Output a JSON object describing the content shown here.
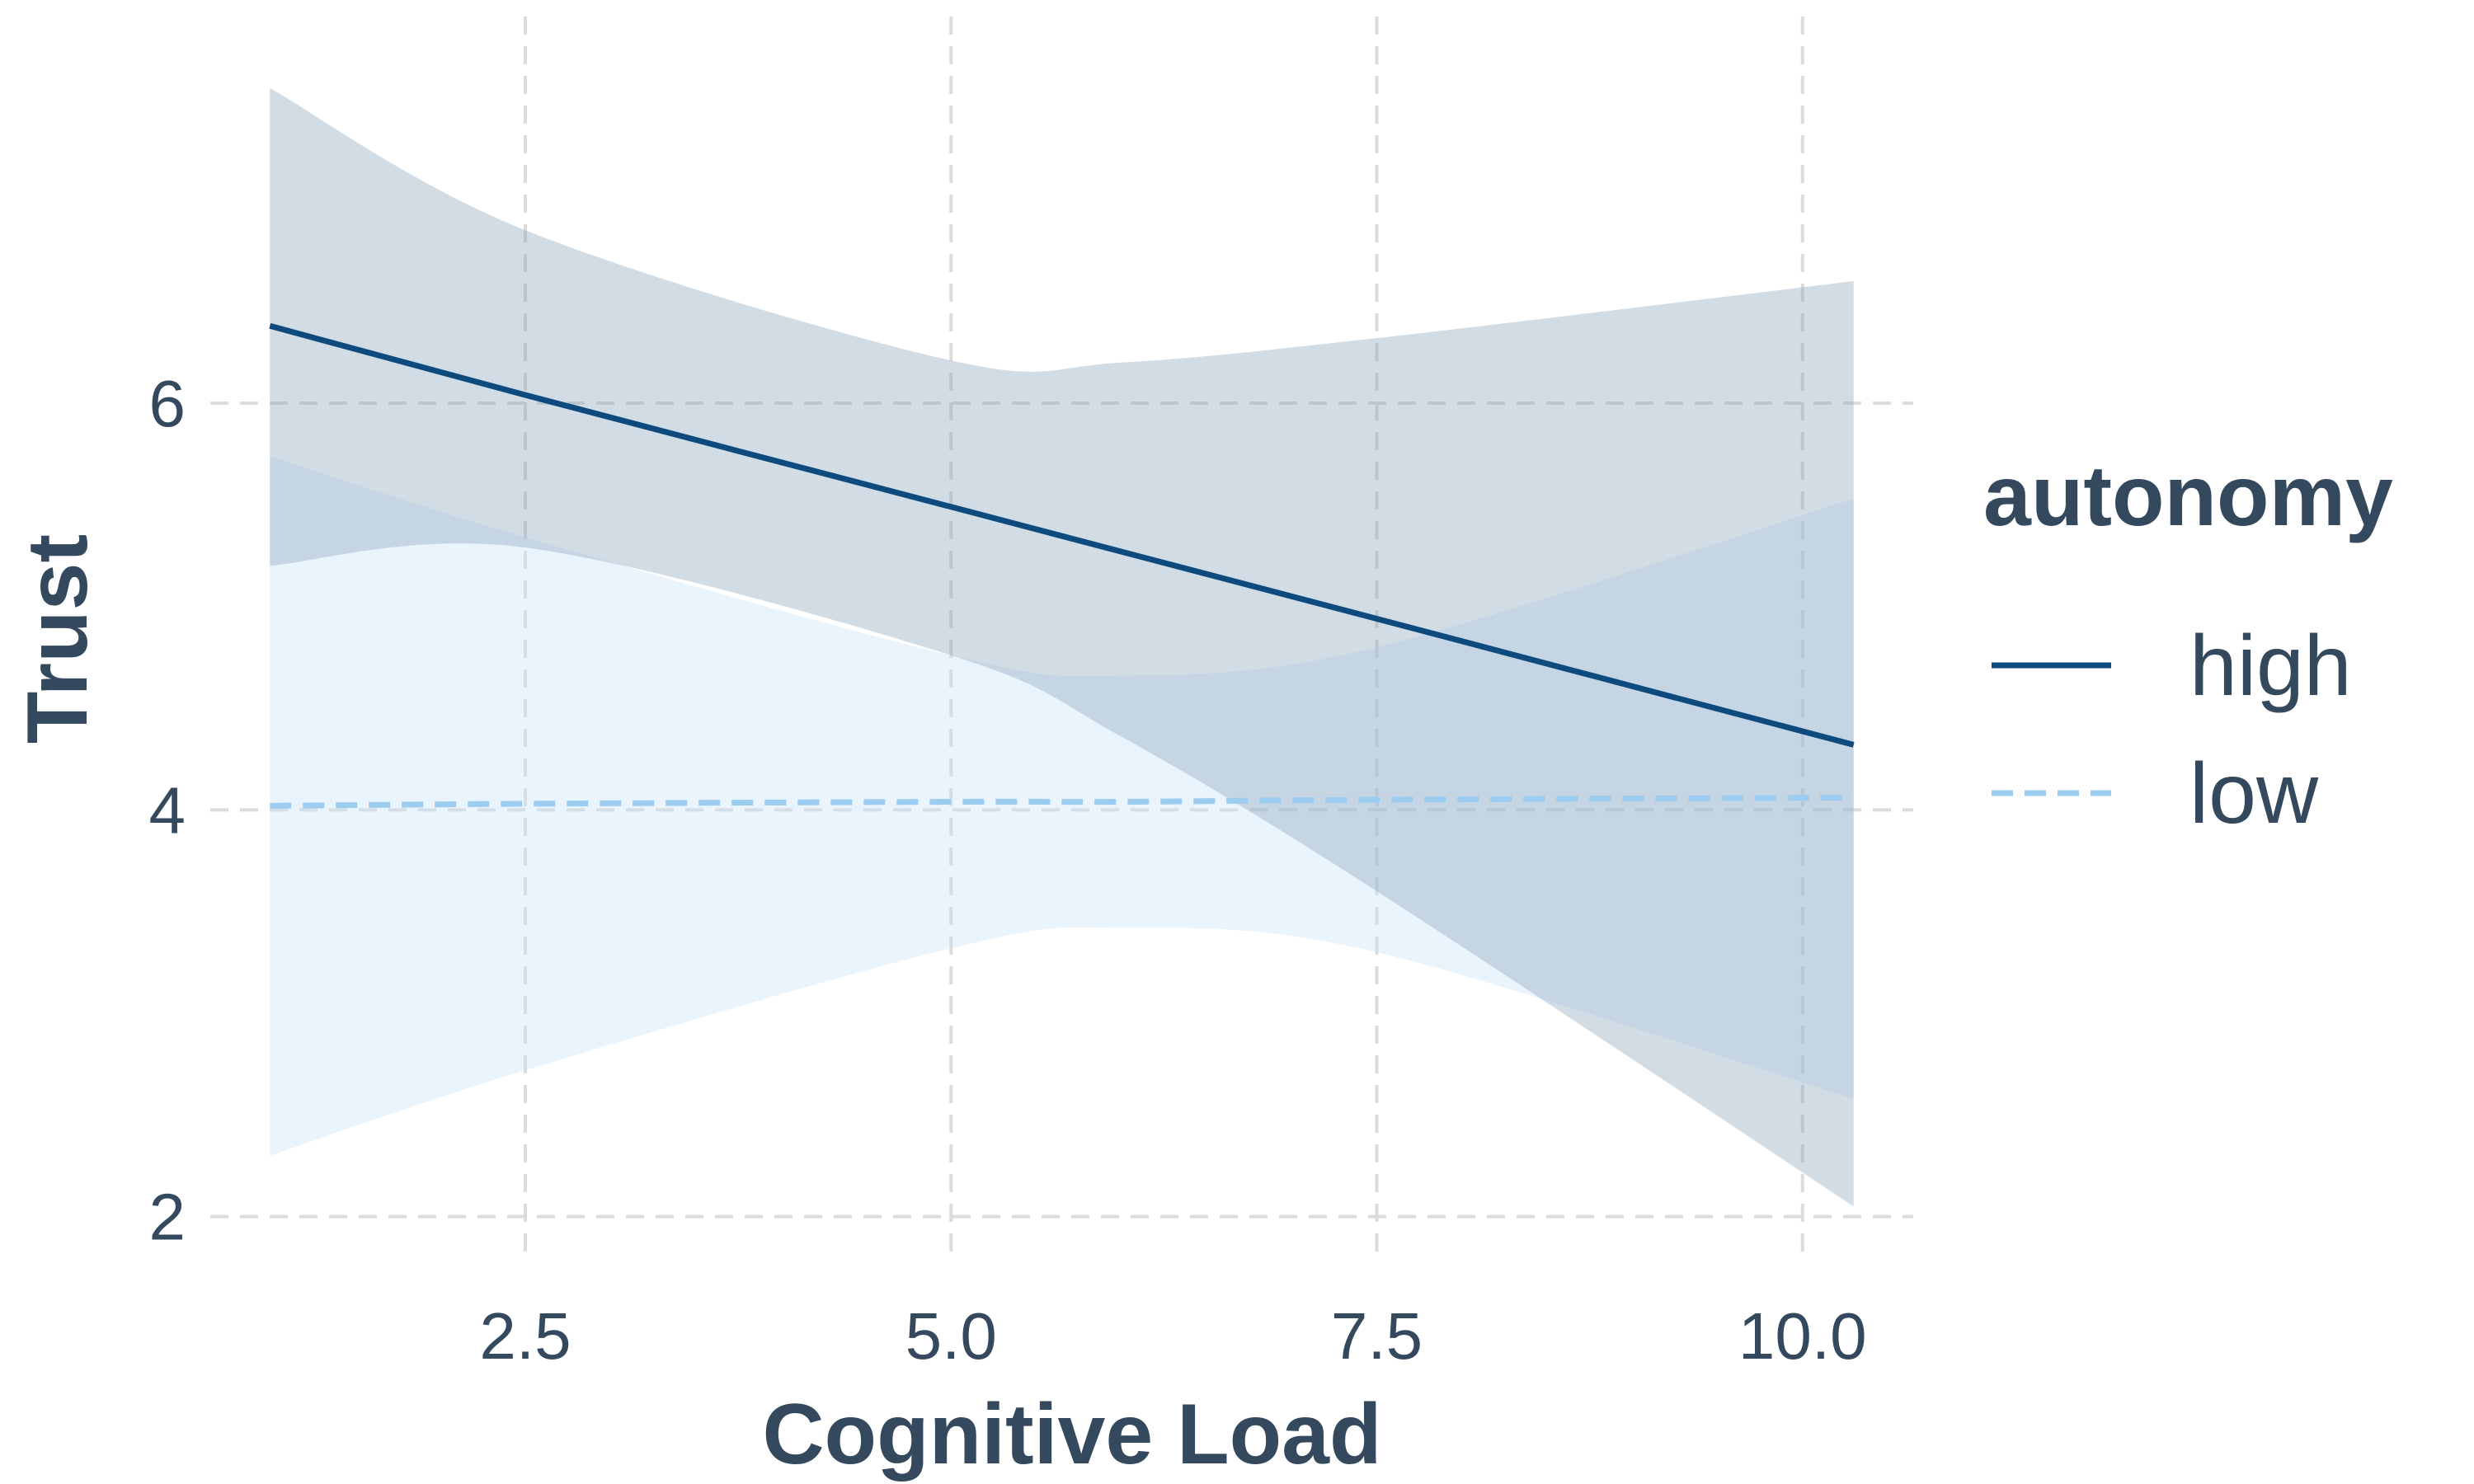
{
  "chart_data": {
    "type": "line",
    "xlabel": "Cognitive Load",
    "ylabel": "Trust",
    "xlim": [
      0.65,
      10.65
    ],
    "ylim": [
      1.8,
      7.8
    ],
    "x_ticks": [
      2.5,
      5.0,
      7.5,
      10.0
    ],
    "x_tick_labels": [
      "2.5",
      "5.0",
      "7.5",
      "10.0"
    ],
    "y_ticks": [
      2,
      4,
      6
    ],
    "y_tick_labels": [
      "2",
      "4",
      "6"
    ],
    "grid": true,
    "legend": {
      "title": "autonomy",
      "position": "right"
    },
    "series": [
      {
        "name": "high",
        "color": "#0d4a7e",
        "dash": "solid",
        "ribbon_color": "#8aa3ba",
        "x": [
          1.0,
          2.5,
          5.0,
          6.0,
          7.5,
          10.3
        ],
        "y": [
          6.38,
          6.04,
          5.49,
          5.27,
          4.94,
          4.32
        ],
        "lower": [
          5.2,
          5.29,
          4.76,
          4.36,
          3.6,
          2.05
        ],
        "upper": [
          7.55,
          6.85,
          6.21,
          6.2,
          6.32,
          6.6
        ]
      },
      {
        "name": "low",
        "color": "#9ccdf0",
        "dash": "dashed",
        "ribbon_color": "#c8e3f7",
        "x": [
          1.0,
          2.5,
          5.0,
          6.0,
          7.5,
          10.3
        ],
        "y": [
          4.02,
          4.03,
          4.04,
          4.04,
          4.05,
          4.06
        ],
        "lower": [
          2.3,
          2.72,
          3.32,
          3.42,
          3.3,
          2.58
        ],
        "upper": [
          5.74,
          5.34,
          4.76,
          4.66,
          4.8,
          5.53
        ]
      }
    ]
  }
}
